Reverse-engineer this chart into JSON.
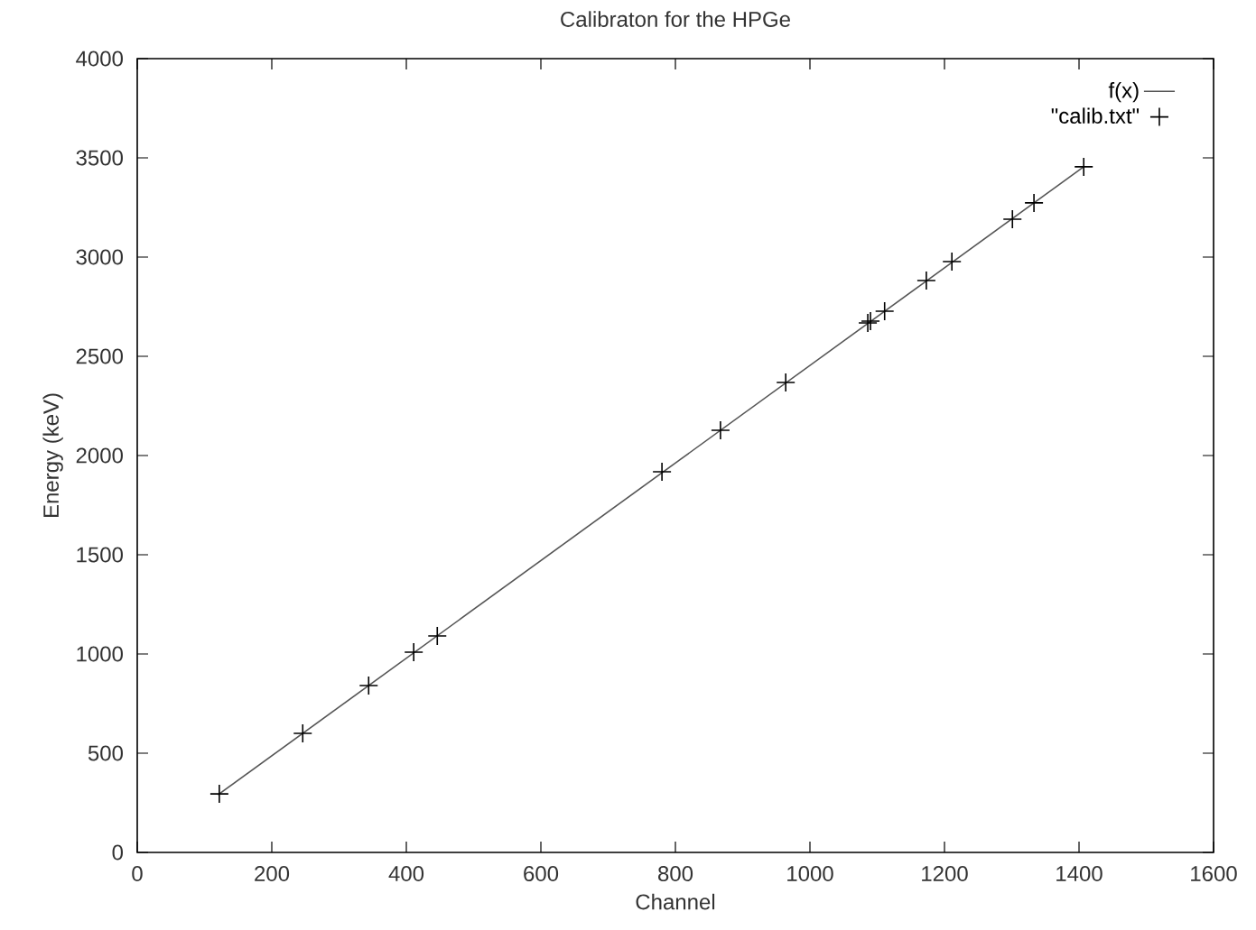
{
  "chart_data": {
    "type": "scatter",
    "title": "Calibraton for the HPGe",
    "xlabel": "Channel",
    "ylabel": "Energy (keV)",
    "xlim": [
      0,
      1600
    ],
    "xticks": [
      0,
      200,
      400,
      600,
      800,
      1000,
      1200,
      1400,
      1600
    ],
    "ylim": [
      0,
      4000
    ],
    "yticks": [
      0,
      500,
      1000,
      1500,
      2000,
      2500,
      3000,
      3500,
      4000
    ],
    "grid": false,
    "legend": "top right",
    "series": [
      {
        "name": "f(x)",
        "type": "line",
        "color": "#555555",
        "marker": "none",
        "line_style": "solid",
        "x": [
          120,
          1407
        ],
        "values": [
          290,
          3455
        ]
      },
      {
        "name": "\"calib.txt\"",
        "type": "scatter",
        "color": "#000000",
        "marker": "cross",
        "x": [
          122,
          246,
          344,
          411,
          446,
          780,
          867,
          964,
          1086,
          1090,
          1111,
          1173,
          1211,
          1301,
          1333,
          1407
        ],
        "values": [
          295,
          600,
          841,
          1009,
          1091,
          1918,
          2127,
          2368,
          2668,
          2677,
          2727,
          2882,
          2977,
          3191,
          3273,
          3455
        ]
      }
    ]
  }
}
